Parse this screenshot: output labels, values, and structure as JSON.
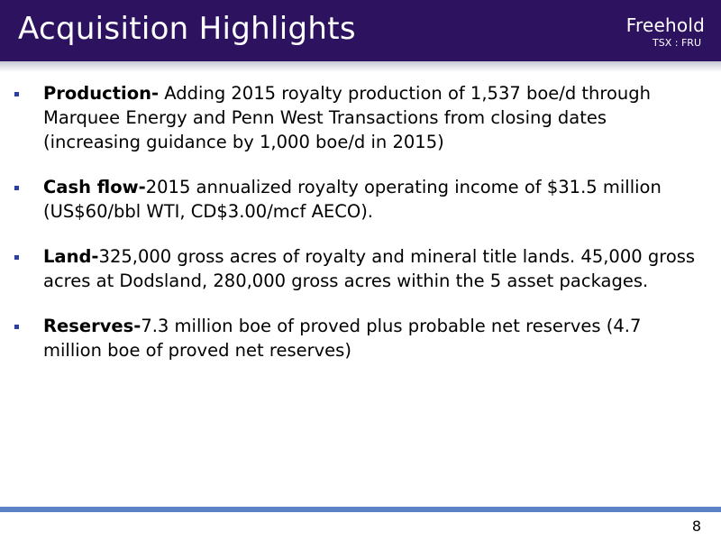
{
  "header": {
    "title": "Acquisition Highlights",
    "logo_name": "Freehold",
    "logo_ticker": "TSX : FRU"
  },
  "bullets": [
    {
      "label": "Production-",
      "text": " Adding 2015 royalty production of 1,537 boe/d through Marquee Energy and Penn West Transactions from closing dates (increasing guidance by 1,000 boe/d in 2015)"
    },
    {
      "label": "Cash flow-",
      "text": "2015 annualized royalty operating income of $31.5 million (US$60/bbl WTI, CD$3.00/mcf AECO)."
    },
    {
      "label": "Land-",
      "text": "325,000 gross acres of royalty and mineral title lands. 45,000 gross acres at Dodsland, 280,000 gross acres within the 5 asset packages."
    },
    {
      "label": "Reserves-",
      "text": "7.3 million boe of proved plus probable net reserves (4.7 million boe of proved net reserves)"
    }
  ],
  "footer": {
    "page_number": "8"
  },
  "colors": {
    "header_bg": "#2d1260",
    "bullet_marker": "#2d3ea0",
    "footer_rule": "#5b83c6"
  }
}
